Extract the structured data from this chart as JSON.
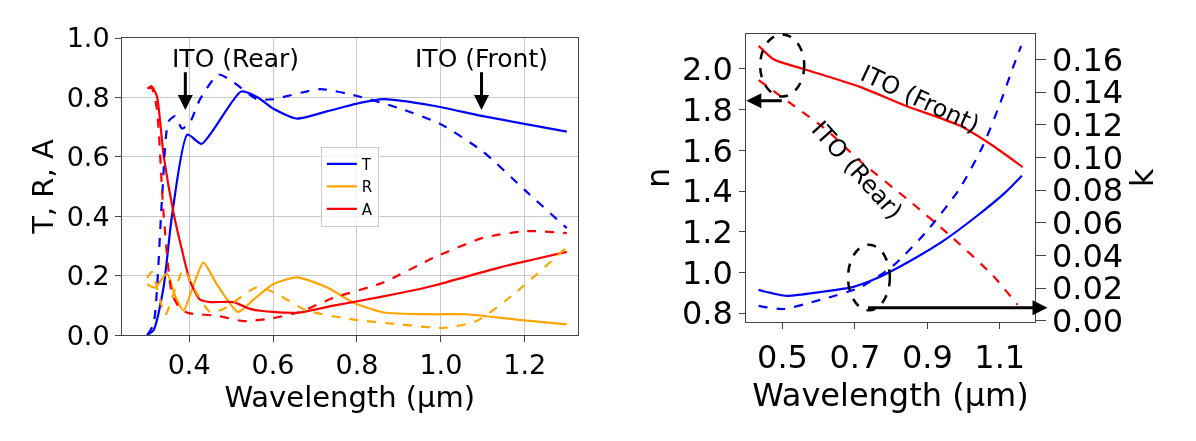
{
  "chart_data": [
    {
      "type": "line",
      "xlabel": "Wavelength (μm)",
      "ylabel": "T, R, A",
      "xlim": [
        0.24,
        1.326
      ],
      "ylim": [
        0,
        1.0
      ],
      "xticks": [
        0.4,
        0.6,
        0.8,
        {
          "value": 1.0,
          "label": "1.0"
        },
        1.2
      ],
      "yticks": [
        {
          "value": 0,
          "label": "0.0"
        },
        0.2,
        0.4,
        0.6,
        0.8,
        {
          "value": 1.0,
          "label": "1.0"
        }
      ],
      "grid": true,
      "legend": "center",
      "annotations": [
        "ITO (Rear)",
        "ITO (Front)"
      ],
      "series": [
        {
          "name": "T",
          "color": "#0000ff",
          "line_style": "solid",
          "x": [
            0.3,
            0.315,
            0.339,
            0.359,
            0.396,
            0.43,
            0.524,
            0.564,
            0.6,
            0.656,
            0.728,
            0.8,
            0.863,
            0.982,
            1.1,
            1.3
          ],
          "values": [
            0,
            0.016,
            0.16,
            0.4,
            0.675,
            0.644,
            0.82,
            0.8,
            0.763,
            0.729,
            0.753,
            0.779,
            0.794,
            0.772,
            0.737,
            0.685
          ]
        },
        {
          "name": "R",
          "color": "#ffa500",
          "line_style": "solid",
          "x": [
            0.3,
            0.319,
            0.347,
            0.367,
            0.387,
            0.406,
            0.434,
            0.466,
            0.517,
            0.553,
            0.6,
            0.656,
            0.728,
            0.792,
            0.863,
            0.982,
            1.061,
            1.18,
            1.3
          ],
          "values": [
            0.171,
            0.16,
            0.208,
            0.13,
            0.083,
            0.15,
            0.244,
            0.171,
            0.078,
            0.119,
            0.171,
            0.194,
            0.161,
            0.109,
            0.076,
            0.07,
            0.07,
            0.052,
            0.036
          ]
        },
        {
          "name": "A",
          "color": "#ff0000",
          "line_style": "solid",
          "x": [
            0.303,
            0.31,
            0.323,
            0.339,
            0.363,
            0.383,
            0.402,
            0.426,
            0.45,
            0.506,
            0.545,
            0.6,
            0.664,
            0.744,
            0.863,
            0.982,
            1.141,
            1.3
          ],
          "values": [
            0.831,
            0.838,
            0.805,
            0.607,
            0.41,
            0.286,
            0.182,
            0.119,
            0.111,
            0.111,
            0.088,
            0.078,
            0.076,
            0.099,
            0.13,
            0.166,
            0.228,
            0.28
          ]
        },
        {
          "color": "#0000ff",
          "line_style": "dashed",
          "x": [
            0.3,
            0.315,
            0.335,
            0.351,
            0.367,
            0.383,
            0.402,
            0.426,
            0.47,
            0.506,
            0.562,
            0.6,
            0.712,
            0.8,
            0.902,
            0.998,
            1.1,
            1.204,
            1.3
          ],
          "values": [
            0,
            0.036,
            0.45,
            0.72,
            0.737,
            0.695,
            0.716,
            0.794,
            0.877,
            0.851,
            0.794,
            0.794,
            0.828,
            0.805,
            0.763,
            0.711,
            0.618,
            0.483,
            0.36
          ]
        },
        {
          "color": "#ffa500",
          "line_style": "dashed",
          "x": [
            0.3,
            0.311,
            0.327,
            0.343,
            0.363,
            0.387,
            0.41,
            0.45,
            0.482,
            0.562,
            0.6,
            0.68,
            0.792,
            0.902,
            1.006,
            1.085,
            1.18,
            1.3
          ],
          "values": [
            0.192,
            0.213,
            0.14,
            0.067,
            0.14,
            0.221,
            0.161,
            0.078,
            0.088,
            0.161,
            0.145,
            0.083,
            0.052,
            0.036,
            0.024,
            0.047,
            0.145,
            0.296
          ]
        },
        {
          "color": "#ff0000",
          "line_style": "dashed",
          "x": [
            0.3,
            0.311,
            0.323,
            0.339,
            0.359,
            0.379,
            0.402,
            0.466,
            0.53,
            0.6,
            0.664,
            0.744,
            0.863,
            0.982,
            1.1,
            1.204,
            1.3
          ],
          "values": [
            0.831,
            0.831,
            0.763,
            0.41,
            0.14,
            0.088,
            0.073,
            0.065,
            0.047,
            0.057,
            0.078,
            0.125,
            0.177,
            0.26,
            0.327,
            0.35,
            0.343
          ]
        }
      ]
    },
    {
      "type": "line",
      "xlabel": "Wavelength (μm)",
      "ylabel": "n",
      "y2label": "k",
      "xlim": [
        0.4,
        1.196
      ],
      "ylim": [
        0.755,
        2.174
      ],
      "y2lim": [
        -0.001,
        0.176
      ],
      "xticks": [
        0.5,
        0.7,
        0.9,
        1.1
      ],
      "yticks": [
        0.8,
        {
          "value": 1.0,
          "label": "1.0"
        },
        1.2,
        1.4,
        1.6,
        1.8,
        {
          "value": 2.0,
          "label": "2.0"
        }
      ],
      "y2ticks": [
        {
          "value": 0,
          "label": "0.00"
        },
        {
          "value": 0.02,
          "label": "0.02"
        },
        {
          "value": 0.04,
          "label": "0.04"
        },
        {
          "value": 0.06,
          "label": "0.06"
        },
        {
          "value": 0.08,
          "label": "0.08"
        },
        {
          "value": 0.1,
          "label": "0.10"
        },
        {
          "value": 0.12,
          "label": "0.12"
        },
        {
          "value": 0.14,
          "label": "0.14"
        },
        {
          "value": 0.16,
          "label": "0.16"
        }
      ],
      "annotations": [
        "ITO (Front)",
        "ITO (Rear)"
      ],
      "series": [
        {
          "color": "#ff0000",
          "line_style": "solid",
          "x": [
            0.434,
            0.475,
            0.558,
            0.714,
            0.838,
            0.989,
            1.08,
            1.163
          ],
          "values": [
            2.114,
            2.048,
            2.0,
            1.912,
            1.821,
            1.722,
            1.624,
            1.518
          ]
        },
        {
          "color": "#ff0000",
          "line_style": "dashed",
          "x": [
            0.434,
            0.53,
            0.622,
            0.714,
            0.851,
            0.971,
            1.08,
            1.149
          ],
          "values": [
            1.945,
            1.821,
            1.7,
            1.548,
            1.351,
            1.169,
            0.987,
            0.842
          ]
        },
        {
          "color": "#0000ff",
          "line_style": "solid",
          "axis": "y2",
          "x": [
            0.434,
            0.512,
            0.604,
            0.696,
            0.76,
            0.851,
            0.943,
            1.035,
            1.117,
            1.161
          ],
          "values": [
            0.0189,
            0.0153,
            0.0176,
            0.0208,
            0.026,
            0.0365,
            0.0488,
            0.0639,
            0.079,
            0.0889
          ]
        },
        {
          "color": "#0000ff",
          "line_style": "dashed",
          "axis": "y2",
          "x": [
            0.434,
            0.502,
            0.604,
            0.714,
            0.805,
            0.897,
            0.989,
            1.053,
            1.099,
            1.136,
            1.159
          ],
          "values": [
            0.0091,
            0.0072,
            0.0128,
            0.0204,
            0.0336,
            0.0545,
            0.0809,
            0.107,
            0.132,
            0.155,
            0.1685
          ]
        }
      ]
    }
  ]
}
